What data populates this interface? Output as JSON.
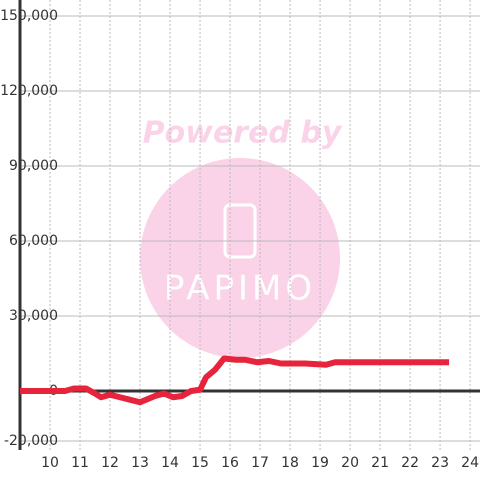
{
  "chart_data": {
    "type": "line",
    "watermark": [
      "Powered by",
      "PAPIMO"
    ],
    "x": [
      9,
      10,
      10.5,
      10.8,
      11.2,
      11.5,
      11.7,
      12,
      12.5,
      13,
      13.5,
      13.8,
      14.1,
      14.4,
      14.7,
      15,
      15.2,
      15.5,
      15.8,
      16.2,
      16.5,
      16.9,
      17.3,
      17.7,
      18.5,
      19.2,
      19.5,
      23.3
    ],
    "series": [
      {
        "color": "#e8243c",
        "values": [
          0,
          0,
          0,
          1000,
          1000,
          -1000,
          -2500,
          -1500,
          -3000,
          -4500,
          -2000,
          -1000,
          -2500,
          -2000,
          0,
          500,
          5500,
          8500,
          13000,
          12500,
          12500,
          11500,
          12000,
          11000,
          11000,
          10500,
          11500,
          11500
        ]
      }
    ],
    "xlim": [
      9,
      24.33
    ],
    "xticks": [
      10,
      11,
      12,
      13,
      14,
      15,
      16,
      17,
      18,
      19,
      20,
      21,
      22,
      23,
      24
    ],
    "ylim": [
      -20000,
      150000
    ],
    "yticks": [
      {
        "value": -20000,
        "label": "-20,000"
      },
      0,
      {
        "value": 30000,
        "label": "30,000"
      },
      {
        "value": 60000,
        "label": "60,000"
      },
      {
        "value": 90000,
        "label": "90,000"
      },
      {
        "value": 120000,
        "label": "120,000"
      },
      {
        "value": 150000,
        "label": "150,000"
      }
    ],
    "grid": true
  }
}
